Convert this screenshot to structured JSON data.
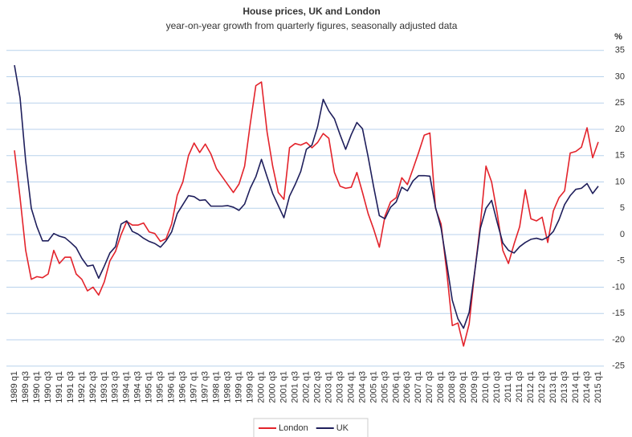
{
  "chart_data": {
    "type": "line",
    "title": "House prices, UK and London",
    "subtitle": "year-on-year growth from quarterly figures, seasonally adjusted data",
    "y_unit": "%",
    "categories": [
      "1989 q1",
      null,
      "1989 q3",
      null,
      "1990 q1",
      null,
      "1990 q3",
      null,
      "1991 q1",
      null,
      "1991 q3",
      null,
      "1992 q1",
      null,
      "1992 q3",
      null,
      "1993 q1",
      null,
      "1993 q3",
      null,
      "1994 q1",
      null,
      "1994 q3",
      null,
      "1995 q1",
      null,
      "1995 q3",
      null,
      "1996 q1",
      null,
      "1996 q3",
      null,
      "1997 q1",
      null,
      "1997 q3",
      null,
      "1998 q1",
      null,
      "1998 q3",
      null,
      "1999 q1",
      null,
      "1999 q3",
      null,
      "2000 q1",
      null,
      "2000 q3",
      null,
      "2001 q1",
      null,
      "2001 q3",
      null,
      "2002 q1",
      null,
      "2002 q3",
      null,
      "2003 q1",
      null,
      "2003 q3",
      null,
      "2004 q1",
      null,
      "2004 q3",
      null,
      "2005 q1",
      null,
      "2005 q3",
      null,
      "2006 q1",
      null,
      "2006 q3",
      null,
      "2007 q1",
      null,
      "2007 q3",
      null,
      "2008 q1",
      null,
      "2008 q3",
      null,
      "2009 q1",
      null,
      "2009 q3",
      null,
      "2010 q1",
      null,
      "2010 q3",
      null,
      "2011 q1",
      null,
      "2011 q3",
      null,
      "2012 q1",
      null,
      "2012 q3",
      null,
      "2013 q1",
      null,
      "2013 q3",
      null,
      "2014 q1",
      null,
      "2014 q3",
      null,
      "2015 q1"
    ],
    "series": [
      {
        "name": "London",
        "color": "#e3232b",
        "values": [
          16,
          7,
          -3,
          -8.5,
          -8,
          -8.2,
          -7.5,
          -3,
          -5.5,
          -4.3,
          -4.3,
          -7.5,
          -8.5,
          -10.7,
          -10,
          -11.5,
          -9,
          -5,
          -3.2,
          0,
          2.5,
          1.8,
          1.8,
          2.2,
          0.5,
          0.2,
          -1.3,
          -0.8,
          2,
          7.5,
          10,
          15,
          17.4,
          15.6,
          17.2,
          15.3,
          12.5,
          11,
          9.5,
          8,
          9.6,
          13,
          21,
          28.3,
          29,
          19.5,
          13,
          8,
          6.7,
          16.5,
          17.3,
          17,
          17.5,
          16.5,
          17.5,
          19.2,
          18.3,
          11.8,
          9.2,
          8.8,
          9,
          11.8,
          8,
          4,
          1,
          -2.4,
          3.5,
          6.2,
          7,
          10.8,
          9.5,
          12.5,
          15.6,
          18.9,
          19.3,
          5,
          2,
          -7,
          -17.3,
          -16.8,
          -21.2,
          -17,
          -7,
          2,
          13,
          10,
          4,
          -3,
          -5.5,
          -1.8,
          1.5,
          8.5,
          3,
          2.6,
          3.3,
          -1.5,
          4.5,
          7,
          8.3,
          15.5,
          15.8,
          16.6,
          20.3,
          14.6,
          17.6
        ]
      },
      {
        "name": "UK",
        "color": "#1f1f5c",
        "values": [
          32.2,
          26,
          14,
          5,
          1.5,
          -1.2,
          -1.2,
          0.2,
          -0.3,
          -0.6,
          -1.5,
          -2.5,
          -4.5,
          -6,
          -5.8,
          -8.3,
          -6,
          -3.5,
          -2.3,
          2,
          2.6,
          0.6,
          0.1,
          -0.7,
          -1.3,
          -1.7,
          -2.4,
          -1.2,
          0.5,
          4,
          5.7,
          7.4,
          7.2,
          6.5,
          6.6,
          5.4,
          5.4,
          5.4,
          5.5,
          5.2,
          4.6,
          5.8,
          8.8,
          11,
          14.3,
          11,
          7.8,
          5.5,
          3.2,
          7.3,
          9.5,
          12,
          16.2,
          17,
          20.5,
          25.7,
          23.5,
          22,
          19,
          16.2,
          19,
          21.3,
          20.1,
          14.8,
          9,
          3.6,
          3,
          5.2,
          6.2,
          9,
          8.3,
          10.2,
          11.2,
          11.2,
          11.1,
          5.2,
          1.2,
          -5.5,
          -12.5,
          -16,
          -17.8,
          -14.8,
          -7,
          1.2,
          5,
          6.5,
          2.3,
          -1.6,
          -3,
          -3.5,
          -2.3,
          -1.5,
          -0.9,
          -0.7,
          -1,
          -0.5,
          0.6,
          2.8,
          5.7,
          7.4,
          8.6,
          8.8,
          9.7,
          7.8,
          9.2
        ]
      }
    ],
    "ylim": [
      -25,
      35
    ],
    "yticks": [
      -25,
      -20,
      -15,
      -10,
      -5,
      0,
      5,
      10,
      15,
      20,
      25,
      30,
      35
    ],
    "grid": true,
    "legend": "bottom"
  }
}
